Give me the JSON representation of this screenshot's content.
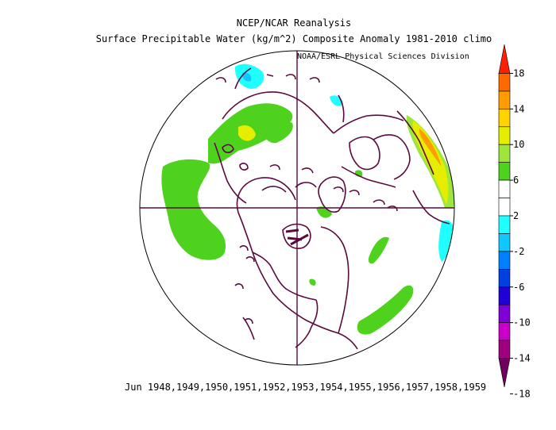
{
  "header": {
    "title": "NCEP/NCAR Reanalysis",
    "subtitle": "Surface Precipitable Water (kg/m^2) Composite Anomaly 1981-2010 climo",
    "credit": "NOAA/ESRL Physical Sciences Division"
  },
  "footer": {
    "period": "Jun 1948,1949,1950,1951,1952,1953,1954,1955,1956,1957,1958,1959"
  },
  "colorbar": {
    "labels": [
      "18",
      "14",
      "10",
      "6",
      "2",
      "-2",
      "-6",
      "-10",
      "-14",
      "-18"
    ],
    "colors": [
      "#ff2000",
      "#ff6a00",
      "#ff9c00",
      "#ffd400",
      "#e6ee00",
      "#9ee63c",
      "#4ed21e",
      "#ffffff",
      "#ffffff",
      "#20ffff",
      "#10c8ff",
      "#0080ff",
      "#0040e0",
      "#2000d8",
      "#8000d8",
      "#c800c8",
      "#a00080",
      "#700060"
    ]
  },
  "map": {
    "projection": "north-polar-stereographic",
    "land_outline_color": "#5a0a3c",
    "positive_anomaly_color": "#4ed21e",
    "negative_anomaly_color": "#20ffff"
  }
}
